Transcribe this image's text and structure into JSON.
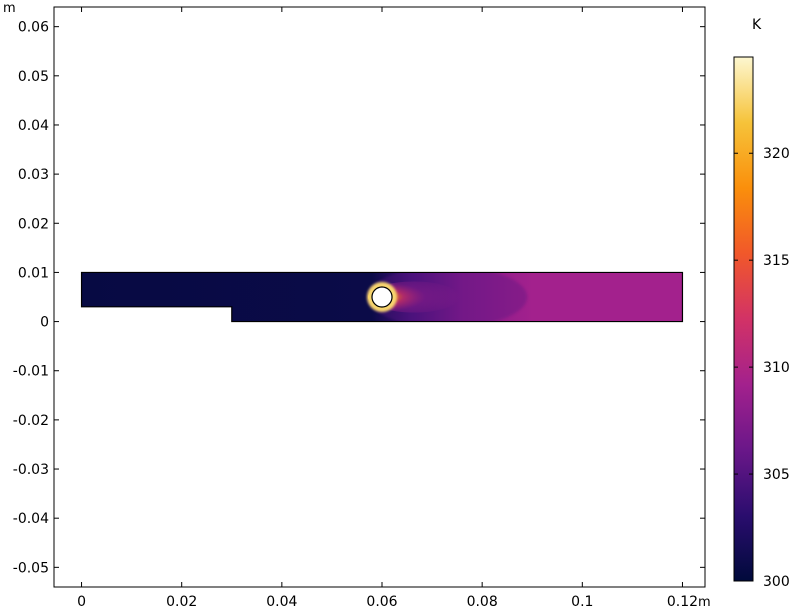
{
  "chart_data": {
    "type": "heatmap",
    "title": "",
    "xlabel": "",
    "ylabel": "",
    "x_unit": "m",
    "y_unit": "m",
    "xlim": [
      -0.0055,
      0.1245
    ],
    "ylim": [
      -0.054,
      0.064
    ],
    "x_ticks": [
      0,
      0.02,
      0.04,
      0.06,
      0.08,
      0.1,
      0.12
    ],
    "x_tick_labels": [
      "0",
      "0.02",
      "0.04",
      "0.06",
      "0.08",
      "0.1",
      "0.12"
    ],
    "y_ticks": [
      0.06,
      0.05,
      0.04,
      0.03,
      0.02,
      0.01,
      0,
      -0.01,
      -0.02,
      -0.03,
      -0.04,
      -0.05
    ],
    "y_tick_labels": [
      "0.06",
      "0.05",
      "0.04",
      "0.03",
      "0.02",
      "0.01",
      "0",
      "-0.01",
      "-0.02",
      "-0.03",
      "-0.04",
      "-0.05"
    ],
    "grid": false,
    "domain_outline": [
      [
        0,
        0.003
      ],
      [
        0,
        0.01
      ],
      [
        0.12,
        0.01
      ],
      [
        0.12,
        0
      ],
      [
        0.03,
        0
      ],
      [
        0.03,
        0.003
      ]
    ],
    "hole": {
      "cx": 0.06,
      "cy": 0.005,
      "r": 0.002
    },
    "field": {
      "upstream_temperature_K": 300.5,
      "downstream_temperature_K": 309.2,
      "max_temperature_K": 324.5
    },
    "colorbar": {
      "unit": "K",
      "range": [
        300,
        324.5
      ],
      "ticks": [
        300,
        305,
        310,
        315,
        320
      ],
      "tick_labels": [
        "300",
        "305",
        "310",
        "315",
        "320"
      ],
      "colormap": "thermal",
      "colors": [
        "#000a3b",
        "#2a0d6e",
        "#6a1789",
        "#a3218d",
        "#d23266",
        "#f1582a",
        "#fa8f0b",
        "#f6c33a",
        "#fdf7d0"
      ]
    }
  }
}
